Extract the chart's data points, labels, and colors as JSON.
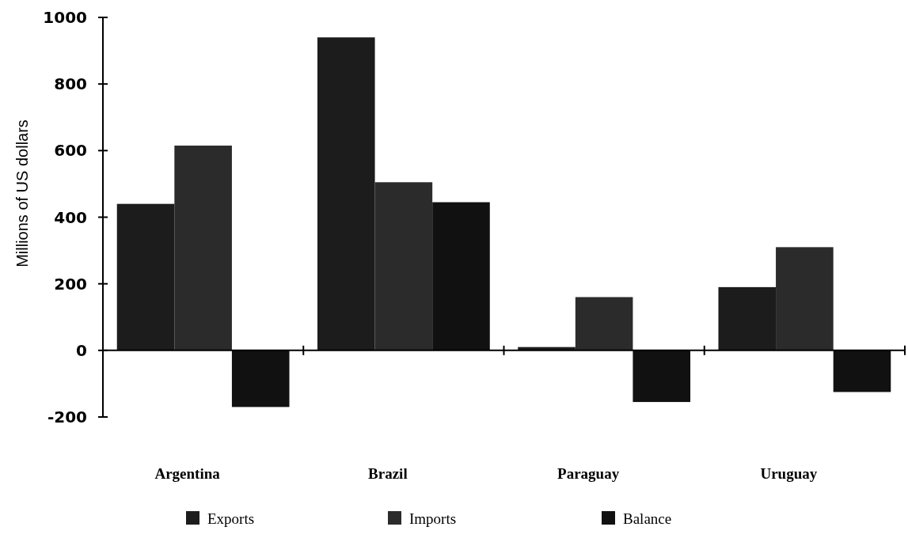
{
  "chart_data": {
    "type": "bar",
    "ylabel": "Millions of US dollars",
    "categories": [
      "Argentina",
      "Brazil",
      "Paraguay",
      "Uruguay"
    ],
    "series": [
      {
        "name": "Exports",
        "color": "#1c1c1c",
        "values": [
          440,
          940,
          10,
          190
        ]
      },
      {
        "name": "Imports",
        "color": "#2b2b2b",
        "values": [
          615,
          505,
          160,
          310
        ]
      },
      {
        "name": "Balance",
        "color": "#111111",
        "values": [
          -170,
          445,
          -155,
          -125
        ]
      }
    ],
    "ylim": [
      -200,
      1000
    ],
    "yticks": [
      -200,
      0,
      200,
      400,
      600,
      800,
      1000
    ],
    "legend": "bottom"
  }
}
